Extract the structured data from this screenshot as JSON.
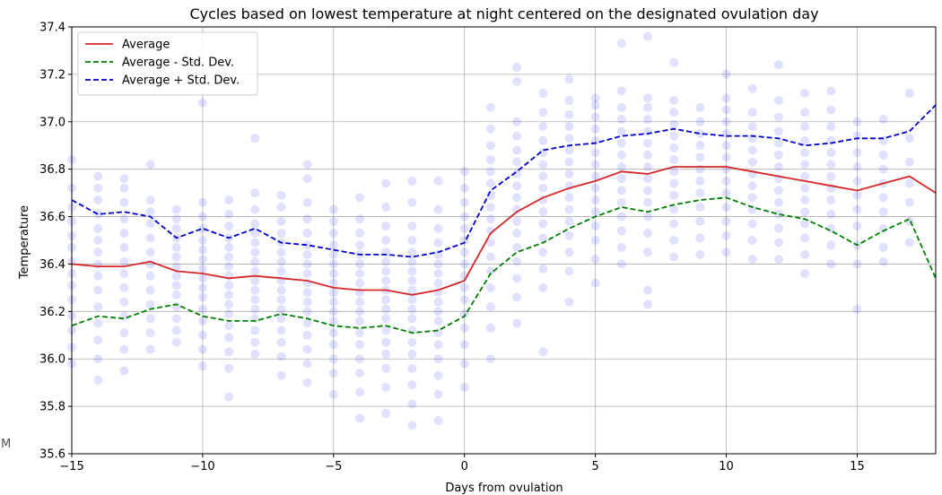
{
  "chart_data": {
    "type": "line",
    "title": "Cycles based on lowest temperature at night centered on the designated ovulation day",
    "xlabel": "Days from ovulation",
    "ylabel": "Temperature",
    "xlim": [
      -15,
      18
    ],
    "ylim": [
      35.6,
      37.4
    ],
    "xticks": [
      -15,
      -10,
      -5,
      0,
      5,
      10,
      15
    ],
    "xtick_labels": [
      "−15",
      "−10",
      "−5",
      "0",
      "5",
      "10",
      "15"
    ],
    "yticks": [
      35.6,
      35.8,
      36.0,
      36.2,
      36.4,
      36.6,
      36.8,
      37.0,
      37.2,
      37.4
    ],
    "ytick_labels": [
      "35.6",
      "35.8",
      "36.0",
      "36.2",
      "36.4",
      "36.6",
      "36.8",
      "37.0",
      "37.2",
      "37.4"
    ],
    "grid": true,
    "legend_position": "top-left",
    "x": [
      -15,
      -14,
      -13,
      -12,
      -11,
      -10,
      -9,
      -8,
      -7,
      -6,
      -5,
      -4,
      -3,
      -2,
      -1,
      0,
      1,
      2,
      3,
      4,
      5,
      6,
      7,
      8,
      9,
      10,
      11,
      12,
      13,
      14,
      15,
      16,
      17,
      18
    ],
    "series": [
      {
        "name": "Average",
        "color": "#d62728",
        "style": "solid",
        "values": [
          36.4,
          36.39,
          36.39,
          36.41,
          36.37,
          36.36,
          36.34,
          36.35,
          36.34,
          36.33,
          36.3,
          36.29,
          36.29,
          36.27,
          36.29,
          36.33,
          36.53,
          36.62,
          36.68,
          36.72,
          36.75,
          36.79,
          36.78,
          36.81,
          36.81,
          36.81,
          36.79,
          36.77,
          36.75,
          36.73,
          36.71,
          36.74,
          36.77,
          36.7
        ]
      },
      {
        "name": "Average - Std. Dev.",
        "color": "#008000",
        "style": "dashed",
        "values": [
          36.14,
          36.18,
          36.17,
          36.21,
          36.23,
          36.18,
          36.16,
          36.16,
          36.19,
          36.17,
          36.14,
          36.13,
          36.14,
          36.11,
          36.12,
          36.18,
          36.36,
          36.45,
          36.49,
          36.55,
          36.6,
          36.64,
          36.62,
          36.65,
          36.67,
          36.68,
          36.64,
          36.61,
          36.59,
          36.54,
          36.48,
          36.54,
          36.59,
          36.34
        ]
      },
      {
        "name": "Average + Std. Dev.",
        "color": "#0000cd",
        "style": "dashed",
        "values": [
          36.67,
          36.61,
          36.62,
          36.6,
          36.51,
          36.55,
          36.51,
          36.55,
          36.49,
          36.48,
          36.46,
          36.44,
          36.44,
          36.43,
          36.45,
          36.49,
          36.71,
          36.79,
          36.88,
          36.9,
          36.91,
          36.94,
          36.95,
          36.97,
          36.95,
          36.94,
          36.94,
          36.93,
          36.9,
          36.91,
          36.93,
          36.93,
          36.96,
          37.07
        ]
      }
    ],
    "scatter": {
      "color": "#0000ff",
      "opacity": 0.12,
      "columns": [
        {
          "x": -15,
          "values": [
            35.98,
            36.05,
            36.12,
            36.18,
            36.25,
            36.31,
            36.36,
            36.41,
            36.47,
            36.52,
            36.58,
            36.64,
            36.72,
            36.84
          ]
        },
        {
          "x": -14,
          "values": [
            35.91,
            36.0,
            36.08,
            36.15,
            36.22,
            36.29,
            36.35,
            36.4,
            36.45,
            36.5,
            36.55,
            36.61,
            36.67,
            36.72,
            36.77
          ]
        },
        {
          "x": -13,
          "values": [
            35.95,
            36.04,
            36.11,
            36.18,
            36.24,
            36.3,
            36.36,
            36.41,
            36.47,
            36.53,
            36.59,
            36.66,
            36.72,
            36.76
          ]
        },
        {
          "x": -12,
          "values": [
            36.04,
            36.11,
            36.17,
            36.23,
            36.29,
            36.35,
            36.4,
            36.45,
            36.51,
            36.57,
            36.62,
            36.67,
            36.82
          ]
        },
        {
          "x": -11,
          "values": [
            36.07,
            36.12,
            36.17,
            36.22,
            36.27,
            36.31,
            36.35,
            36.39,
            36.43,
            36.47,
            36.51,
            36.55,
            36.59,
            36.63
          ]
        },
        {
          "x": -10,
          "values": [
            35.97,
            36.04,
            36.1,
            36.16,
            36.21,
            36.26,
            36.3,
            36.34,
            36.38,
            36.42,
            36.46,
            36.5,
            36.55,
            36.6,
            36.66,
            37.08
          ]
        },
        {
          "x": -9,
          "values": [
            35.84,
            35.96,
            36.03,
            36.09,
            36.14,
            36.19,
            36.23,
            36.27,
            36.31,
            36.35,
            36.39,
            36.43,
            36.47,
            36.51,
            36.56,
            36.61,
            36.67
          ]
        },
        {
          "x": -8,
          "values": [
            36.02,
            36.07,
            36.12,
            36.17,
            36.21,
            36.25,
            36.29,
            36.33,
            36.37,
            36.41,
            36.45,
            36.49,
            36.53,
            36.57,
            36.63,
            36.7,
            36.93
          ]
        },
        {
          "x": -7,
          "values": [
            35.93,
            36.01,
            36.07,
            36.12,
            36.17,
            36.21,
            36.25,
            36.29,
            36.33,
            36.37,
            36.41,
            36.45,
            36.49,
            36.53,
            36.58,
            36.64,
            36.69
          ]
        },
        {
          "x": -6,
          "values": [
            35.9,
            35.98,
            36.04,
            36.1,
            36.15,
            36.2,
            36.24,
            36.28,
            36.32,
            36.36,
            36.4,
            36.44,
            36.48,
            36.53,
            36.59,
            36.66,
            36.76,
            36.82
          ]
        },
        {
          "x": -5,
          "values": [
            35.85,
            35.94,
            36.0,
            36.06,
            36.11,
            36.16,
            36.2,
            36.24,
            36.28,
            36.32,
            36.36,
            36.4,
            36.44,
            36.48,
            36.53,
            36.58,
            36.63
          ]
        },
        {
          "x": -4,
          "values": [
            35.75,
            35.86,
            35.94,
            36.0,
            36.06,
            36.11,
            36.16,
            36.2,
            36.24,
            36.28,
            36.32,
            36.36,
            36.4,
            36.44,
            36.48,
            36.53,
            36.59,
            36.68
          ]
        },
        {
          "x": -3,
          "values": [
            35.77,
            35.88,
            35.96,
            36.02,
            36.07,
            36.12,
            36.17,
            36.21,
            36.25,
            36.29,
            36.33,
            36.37,
            36.41,
            36.45,
            36.5,
            36.56,
            36.64,
            36.74
          ]
        },
        {
          "x": -2,
          "values": [
            35.72,
            35.81,
            35.89,
            35.96,
            36.02,
            36.07,
            36.12,
            36.17,
            36.21,
            36.25,
            36.29,
            36.33,
            36.37,
            36.41,
            36.45,
            36.5,
            36.56,
            36.66,
            36.75
          ]
        },
        {
          "x": -1,
          "values": [
            35.74,
            35.85,
            35.93,
            36.0,
            36.06,
            36.11,
            36.16,
            36.2,
            36.24,
            36.28,
            36.32,
            36.36,
            36.4,
            36.44,
            36.49,
            36.55,
            36.63,
            36.75
          ]
        },
        {
          "x": 0,
          "values": [
            35.88,
            35.98,
            36.06,
            36.13,
            36.19,
            36.25,
            36.3,
            36.35,
            36.4,
            36.45,
            36.5,
            36.55,
            36.6,
            36.66,
            36.72,
            36.79
          ]
        },
        {
          "x": 1,
          "values": [
            36.0,
            36.13,
            36.22,
            36.3,
            36.37,
            36.43,
            36.49,
            36.54,
            36.59,
            36.64,
            36.69,
            36.74,
            36.79,
            36.84,
            36.9,
            36.97,
            37.06
          ]
        },
        {
          "x": 2,
          "values": [
            36.15,
            36.26,
            36.34,
            36.41,
            36.47,
            36.53,
            36.58,
            36.63,
            36.68,
            36.73,
            36.78,
            36.83,
            36.88,
            36.94,
            37.0,
            37.17,
            37.23
          ]
        },
        {
          "x": 3,
          "values": [
            36.03,
            36.3,
            36.38,
            36.45,
            36.51,
            36.57,
            36.62,
            36.67,
            36.72,
            36.77,
            36.82,
            36.87,
            36.92,
            36.98,
            37.04,
            37.12
          ]
        },
        {
          "x": 4,
          "values": [
            36.24,
            36.37,
            36.45,
            36.52,
            36.58,
            36.63,
            36.68,
            36.73,
            36.78,
            36.83,
            36.88,
            36.93,
            36.98,
            37.03,
            37.09,
            37.18
          ]
        },
        {
          "x": 5,
          "values": [
            36.32,
            36.42,
            36.5,
            36.56,
            36.62,
            36.67,
            36.72,
            36.77,
            36.82,
            36.87,
            36.92,
            36.97,
            37.02,
            37.07,
            37.1
          ]
        },
        {
          "x": 6,
          "values": [
            36.4,
            36.47,
            36.54,
            36.6,
            36.66,
            36.71,
            36.76,
            36.81,
            36.86,
            36.91,
            36.96,
            37.01,
            37.06,
            37.13,
            37.33
          ]
        },
        {
          "x": 7,
          "values": [
            36.23,
            36.29,
            36.45,
            36.53,
            36.6,
            36.66,
            36.71,
            36.76,
            36.81,
            36.86,
            36.91,
            36.96,
            37.01,
            37.06,
            37.1,
            37.36
          ]
        },
        {
          "x": 8,
          "values": [
            36.43,
            36.5,
            36.57,
            36.63,
            36.69,
            36.74,
            36.79,
            36.84,
            36.89,
            36.94,
            36.99,
            37.04,
            37.09,
            37.25
          ]
        },
        {
          "x": 9,
          "values": [
            36.44,
            36.51,
            36.58,
            36.64,
            36.7,
            36.75,
            36.8,
            36.85,
            36.9,
            36.95,
            37.0,
            37.06
          ]
        },
        {
          "x": 10,
          "values": [
            36.45,
            36.52,
            36.58,
            36.64,
            36.7,
            36.75,
            36.8,
            36.85,
            36.9,
            36.95,
            37.0,
            37.05,
            37.1,
            37.2
          ]
        },
        {
          "x": 11,
          "values": [
            36.42,
            36.5,
            36.57,
            36.63,
            36.68,
            36.73,
            36.78,
            36.83,
            36.88,
            36.93,
            36.98,
            37.04,
            37.14
          ]
        },
        {
          "x": 12,
          "values": [
            36.42,
            36.49,
            36.55,
            36.61,
            36.66,
            36.71,
            36.76,
            36.81,
            36.86,
            36.91,
            36.96,
            37.02,
            37.09,
            37.24
          ]
        },
        {
          "x": 13,
          "values": [
            36.36,
            36.44,
            36.51,
            36.57,
            36.62,
            36.67,
            36.72,
            36.77,
            36.82,
            36.87,
            36.92,
            36.98,
            37.04,
            37.12
          ]
        },
        {
          "x": 14,
          "values": [
            36.4,
            36.48,
            36.55,
            36.61,
            36.67,
            36.72,
            36.77,
            36.82,
            36.87,
            36.92,
            36.98,
            37.05,
            37.13
          ]
        },
        {
          "x": 15,
          "values": [
            36.21,
            36.4,
            36.48,
            36.56,
            36.63,
            36.69,
            36.75,
            36.81,
            36.87,
            36.94,
            37.0
          ]
        },
        {
          "x": 16,
          "values": [
            36.41,
            36.47,
            36.55,
            36.62,
            36.68,
            36.74,
            36.8,
            36.86,
            36.92,
            37.01
          ]
        },
        {
          "x": 17,
          "values": [
            36.49,
            36.58,
            36.66,
            36.74,
            36.83,
            36.93,
            37.12
          ]
        }
      ]
    }
  },
  "stray_text": "M"
}
